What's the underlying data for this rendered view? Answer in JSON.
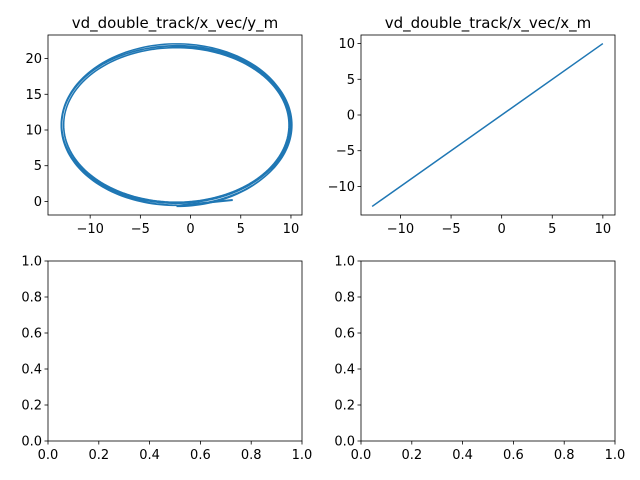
{
  "chart_data": [
    {
      "type": "line",
      "title": "vd_double_track/x_vec/y_m",
      "xlabel": "",
      "ylabel": "",
      "xlim": [
        -14.2,
        11.1
      ],
      "ylim": [
        -1.9,
        23.3
      ],
      "xticks": [
        -10,
        -5,
        0,
        5,
        10
      ],
      "yticks": [
        0,
        5,
        10,
        15,
        20
      ],
      "xtick_labels": [
        "−10",
        "−5",
        "0",
        "5",
        "10"
      ],
      "ytick_labels": [
        "0",
        "5",
        "10",
        "15",
        "20"
      ],
      "grid": false,
      "color": "#1f77b4",
      "series": [
        {
          "shape": "closed loop, several laps",
          "center": [
            -1.4,
            10.7
          ],
          "radius_x": [
            11.2,
            11.5
          ],
          "radius_y": [
            10.8,
            11.4
          ]
        }
      ]
    },
    {
      "type": "line",
      "title": "vd_double_track/x_vec/x_m",
      "xlabel": "",
      "ylabel": "",
      "xlim": [
        -13.9,
        11.2
      ],
      "ylim": [
        -14.0,
        11.2
      ],
      "xticks": [
        -10,
        -5,
        0,
        5,
        10
      ],
      "yticks": [
        -10,
        -5,
        0,
        5,
        10
      ],
      "xtick_labels": [
        "−10",
        "−5",
        "0",
        "5",
        "10"
      ],
      "ytick_labels": [
        "−10",
        "−5",
        "0",
        "5",
        "10"
      ],
      "grid": false,
      "color": "#1f77b4",
      "series": [
        {
          "x": [
            -12.8,
            10.0
          ],
          "y": [
            -12.8,
            10.0
          ]
        }
      ]
    },
    {
      "type": "line",
      "title": "",
      "xlim": [
        0,
        1
      ],
      "ylim": [
        0,
        1
      ],
      "xticks": [
        0,
        0.2,
        0.4,
        0.6,
        0.8,
        1.0
      ],
      "yticks": [
        0,
        0.2,
        0.4,
        0.6,
        0.8,
        1.0
      ],
      "xtick_labels": [
        "0.0",
        "0.2",
        "0.4",
        "0.6",
        "0.8",
        "1.0"
      ],
      "ytick_labels": [
        "0.0",
        "0.2",
        "0.4",
        "0.6",
        "0.8",
        "1.0"
      ],
      "grid": false,
      "series": []
    },
    {
      "type": "line",
      "title": "",
      "xlim": [
        0,
        1
      ],
      "ylim": [
        0,
        1
      ],
      "xticks": [
        0,
        0.2,
        0.4,
        0.6,
        0.8,
        1.0
      ],
      "yticks": [
        0,
        0.2,
        0.4,
        0.6,
        0.8,
        1.0
      ],
      "xtick_labels": [
        "0.0",
        "0.2",
        "0.4",
        "0.6",
        "0.8",
        "1.0"
      ],
      "ytick_labels": [
        "0.0",
        "0.2",
        "0.4",
        "0.6",
        "0.8",
        "1.0"
      ],
      "grid": false,
      "series": []
    }
  ]
}
